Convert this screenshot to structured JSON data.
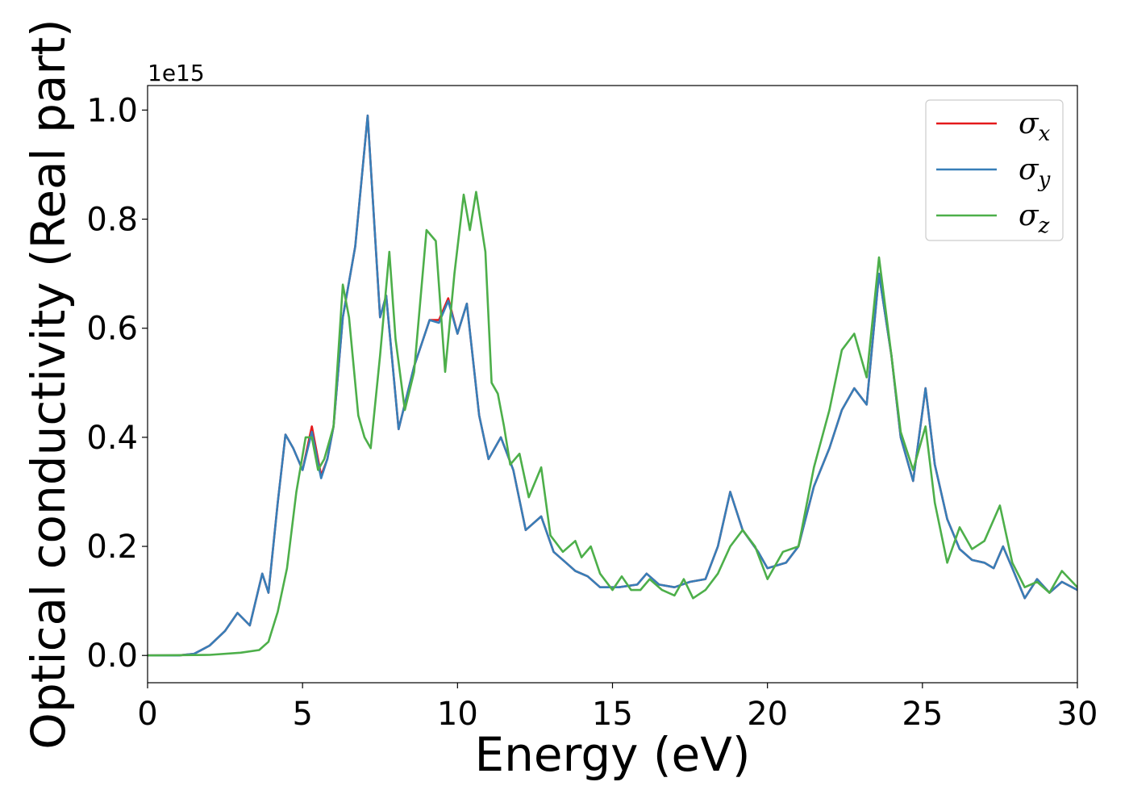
{
  "chart_data": {
    "type": "line",
    "xlabel": "Energy (eV)",
    "ylabel": "Optical conductivity (Real part)",
    "y_offset_label": "1e15",
    "xlim": [
      0,
      30
    ],
    "ylim": [
      -0.05,
      1.045
    ],
    "x_ticks": [
      0,
      5,
      10,
      15,
      20,
      25,
      30
    ],
    "x_tick_labels": [
      "0",
      "5",
      "10",
      "15",
      "20",
      "25",
      "30"
    ],
    "y_ticks": [
      0.0,
      0.2,
      0.4,
      0.6,
      0.8,
      1.0
    ],
    "y_tick_labels": [
      "0.0",
      "0.2",
      "0.4",
      "0.6",
      "0.8",
      "1.0"
    ],
    "grid": false,
    "legend_position": "top-right",
    "series": [
      {
        "name": "σx",
        "symbol": "σ",
        "subscript": "x",
        "color": "#e41a1c",
        "points": [
          [
            0,
            0
          ],
          [
            1,
            0
          ],
          [
            1.5,
            0.003
          ],
          [
            2,
            0.018
          ],
          [
            2.5,
            0.045
          ],
          [
            2.9,
            0.078
          ],
          [
            3.3,
            0.055
          ],
          [
            3.7,
            0.15
          ],
          [
            3.9,
            0.115
          ],
          [
            4.2,
            0.28
          ],
          [
            4.45,
            0.405
          ],
          [
            4.7,
            0.38
          ],
          [
            5.0,
            0.34
          ],
          [
            5.3,
            0.42
          ],
          [
            5.6,
            0.33
          ],
          [
            5.8,
            0.36
          ],
          [
            6.0,
            0.42
          ],
          [
            6.3,
            0.62
          ],
          [
            6.7,
            0.75
          ],
          [
            7.1,
            0.99
          ],
          [
            7.5,
            0.62
          ],
          [
            7.7,
            0.66
          ],
          [
            8.1,
            0.415
          ],
          [
            8.6,
            0.53
          ],
          [
            9.1,
            0.615
          ],
          [
            9.4,
            0.615
          ],
          [
            9.7,
            0.655
          ],
          [
            10.0,
            0.59
          ],
          [
            10.3,
            0.645
          ],
          [
            10.7,
            0.44
          ],
          [
            11.0,
            0.36
          ],
          [
            11.4,
            0.4
          ],
          [
            11.8,
            0.34
          ],
          [
            12.2,
            0.23
          ],
          [
            12.7,
            0.255
          ],
          [
            13.1,
            0.19
          ],
          [
            13.5,
            0.17
          ],
          [
            13.8,
            0.155
          ],
          [
            14.2,
            0.145
          ],
          [
            14.6,
            0.125
          ],
          [
            15.2,
            0.125
          ],
          [
            15.8,
            0.13
          ],
          [
            16.1,
            0.15
          ],
          [
            16.5,
            0.13
          ],
          [
            17.0,
            0.125
          ],
          [
            17.5,
            0.135
          ],
          [
            18.0,
            0.14
          ],
          [
            18.4,
            0.2
          ],
          [
            18.8,
            0.3
          ],
          [
            19.2,
            0.23
          ],
          [
            19.7,
            0.19
          ],
          [
            20.0,
            0.16
          ],
          [
            20.6,
            0.17
          ],
          [
            21.0,
            0.2
          ],
          [
            21.5,
            0.31
          ],
          [
            22.0,
            0.38
          ],
          [
            22.4,
            0.45
          ],
          [
            22.8,
            0.49
          ],
          [
            23.2,
            0.46
          ],
          [
            23.6,
            0.7
          ],
          [
            24.0,
            0.55
          ],
          [
            24.3,
            0.4
          ],
          [
            24.7,
            0.32
          ],
          [
            25.1,
            0.49
          ],
          [
            25.4,
            0.35
          ],
          [
            25.8,
            0.25
          ],
          [
            26.2,
            0.195
          ],
          [
            26.6,
            0.175
          ],
          [
            27.0,
            0.17
          ],
          [
            27.3,
            0.16
          ],
          [
            27.6,
            0.2
          ],
          [
            27.9,
            0.16
          ],
          [
            28.3,
            0.105
          ],
          [
            28.7,
            0.14
          ],
          [
            29.1,
            0.115
          ],
          [
            29.5,
            0.135
          ],
          [
            30,
            0.12
          ]
        ]
      },
      {
        "name": "σy",
        "symbol": "σ",
        "subscript": "y",
        "color": "#377eb8",
        "points": [
          [
            0,
            0
          ],
          [
            1,
            0
          ],
          [
            1.5,
            0.003
          ],
          [
            2,
            0.018
          ],
          [
            2.5,
            0.045
          ],
          [
            2.9,
            0.078
          ],
          [
            3.3,
            0.055
          ],
          [
            3.7,
            0.15
          ],
          [
            3.9,
            0.115
          ],
          [
            4.2,
            0.28
          ],
          [
            4.45,
            0.405
          ],
          [
            4.7,
            0.38
          ],
          [
            5.0,
            0.34
          ],
          [
            5.3,
            0.41
          ],
          [
            5.6,
            0.325
          ],
          [
            5.8,
            0.36
          ],
          [
            6.0,
            0.42
          ],
          [
            6.3,
            0.62
          ],
          [
            6.7,
            0.75
          ],
          [
            7.1,
            0.99
          ],
          [
            7.5,
            0.62
          ],
          [
            7.7,
            0.66
          ],
          [
            8.1,
            0.415
          ],
          [
            8.6,
            0.53
          ],
          [
            9.1,
            0.615
          ],
          [
            9.4,
            0.61
          ],
          [
            9.7,
            0.65
          ],
          [
            10.0,
            0.59
          ],
          [
            10.3,
            0.645
          ],
          [
            10.7,
            0.44
          ],
          [
            11.0,
            0.36
          ],
          [
            11.4,
            0.4
          ],
          [
            11.8,
            0.34
          ],
          [
            12.2,
            0.23
          ],
          [
            12.7,
            0.255
          ],
          [
            13.1,
            0.19
          ],
          [
            13.5,
            0.17
          ],
          [
            13.8,
            0.155
          ],
          [
            14.2,
            0.145
          ],
          [
            14.6,
            0.125
          ],
          [
            15.2,
            0.125
          ],
          [
            15.8,
            0.13
          ],
          [
            16.1,
            0.15
          ],
          [
            16.5,
            0.13
          ],
          [
            17.0,
            0.125
          ],
          [
            17.5,
            0.135
          ],
          [
            18.0,
            0.14
          ],
          [
            18.4,
            0.2
          ],
          [
            18.8,
            0.3
          ],
          [
            19.2,
            0.23
          ],
          [
            19.7,
            0.19
          ],
          [
            20.0,
            0.16
          ],
          [
            20.6,
            0.17
          ],
          [
            21.0,
            0.2
          ],
          [
            21.5,
            0.31
          ],
          [
            22.0,
            0.38
          ],
          [
            22.4,
            0.45
          ],
          [
            22.8,
            0.49
          ],
          [
            23.2,
            0.46
          ],
          [
            23.6,
            0.7
          ],
          [
            24.0,
            0.55
          ],
          [
            24.3,
            0.4
          ],
          [
            24.7,
            0.32
          ],
          [
            25.1,
            0.49
          ],
          [
            25.4,
            0.35
          ],
          [
            25.8,
            0.25
          ],
          [
            26.2,
            0.195
          ],
          [
            26.6,
            0.175
          ],
          [
            27.0,
            0.17
          ],
          [
            27.3,
            0.16
          ],
          [
            27.6,
            0.2
          ],
          [
            27.9,
            0.16
          ],
          [
            28.3,
            0.105
          ],
          [
            28.7,
            0.14
          ],
          [
            29.1,
            0.115
          ],
          [
            29.5,
            0.135
          ],
          [
            30,
            0.12
          ]
        ]
      },
      {
        "name": "σz",
        "symbol": "σ",
        "subscript": "z",
        "color": "#4daf4a",
        "points": [
          [
            0,
            0
          ],
          [
            2,
            0.001
          ],
          [
            3,
            0.005
          ],
          [
            3.6,
            0.01
          ],
          [
            3.9,
            0.025
          ],
          [
            4.2,
            0.08
          ],
          [
            4.5,
            0.16
          ],
          [
            4.8,
            0.3
          ],
          [
            5.1,
            0.4
          ],
          [
            5.3,
            0.4
          ],
          [
            5.5,
            0.34
          ],
          [
            5.7,
            0.36
          ],
          [
            6.0,
            0.42
          ],
          [
            6.3,
            0.68
          ],
          [
            6.5,
            0.62
          ],
          [
            6.8,
            0.44
          ],
          [
            7.0,
            0.4
          ],
          [
            7.2,
            0.38
          ],
          [
            7.5,
            0.55
          ],
          [
            7.8,
            0.74
          ],
          [
            8.0,
            0.58
          ],
          [
            8.3,
            0.45
          ],
          [
            8.6,
            0.52
          ],
          [
            9.0,
            0.78
          ],
          [
            9.3,
            0.76
          ],
          [
            9.6,
            0.52
          ],
          [
            9.9,
            0.7
          ],
          [
            10.2,
            0.845
          ],
          [
            10.4,
            0.78
          ],
          [
            10.6,
            0.85
          ],
          [
            10.9,
            0.74
          ],
          [
            11.1,
            0.5
          ],
          [
            11.3,
            0.48
          ],
          [
            11.5,
            0.42
          ],
          [
            11.7,
            0.35
          ],
          [
            12.0,
            0.37
          ],
          [
            12.3,
            0.29
          ],
          [
            12.7,
            0.345
          ],
          [
            13.0,
            0.22
          ],
          [
            13.4,
            0.19
          ],
          [
            13.8,
            0.21
          ],
          [
            14.0,
            0.18
          ],
          [
            14.3,
            0.2
          ],
          [
            14.6,
            0.15
          ],
          [
            15.0,
            0.12
          ],
          [
            15.3,
            0.145
          ],
          [
            15.6,
            0.12
          ],
          [
            15.9,
            0.12
          ],
          [
            16.2,
            0.14
          ],
          [
            16.6,
            0.12
          ],
          [
            17.0,
            0.11
          ],
          [
            17.3,
            0.14
          ],
          [
            17.6,
            0.105
          ],
          [
            18.0,
            0.12
          ],
          [
            18.4,
            0.15
          ],
          [
            18.8,
            0.2
          ],
          [
            19.2,
            0.23
          ],
          [
            19.6,
            0.2
          ],
          [
            20.0,
            0.14
          ],
          [
            20.5,
            0.19
          ],
          [
            21.0,
            0.2
          ],
          [
            21.5,
            0.345
          ],
          [
            22.0,
            0.45
          ],
          [
            22.4,
            0.56
          ],
          [
            22.8,
            0.59
          ],
          [
            23.2,
            0.51
          ],
          [
            23.6,
            0.73
          ],
          [
            24.0,
            0.55
          ],
          [
            24.3,
            0.41
          ],
          [
            24.7,
            0.34
          ],
          [
            25.1,
            0.42
          ],
          [
            25.4,
            0.28
          ],
          [
            25.8,
            0.17
          ],
          [
            26.2,
            0.235
          ],
          [
            26.6,
            0.195
          ],
          [
            27.0,
            0.21
          ],
          [
            27.5,
            0.275
          ],
          [
            27.9,
            0.17
          ],
          [
            28.3,
            0.125
          ],
          [
            28.7,
            0.135
          ],
          [
            29.1,
            0.115
          ],
          [
            29.5,
            0.155
          ],
          [
            30,
            0.125
          ]
        ]
      }
    ]
  }
}
